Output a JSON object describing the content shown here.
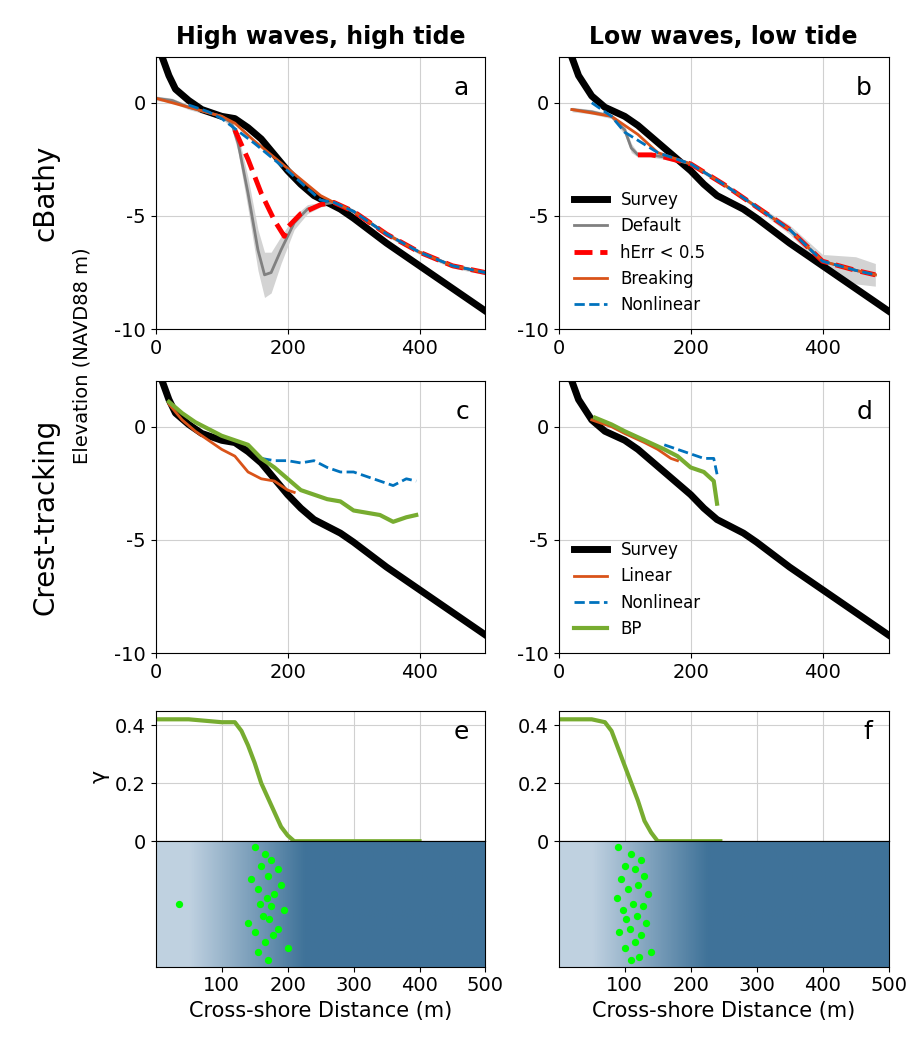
{
  "figure": {
    "ylabel": "Elevation (NAVD88 m)",
    "row_labels": [
      "cBathy",
      "Crest-tracking"
    ]
  },
  "chart_data": [
    {
      "type": "line",
      "label": "a",
      "title": "High waves, high tide",
      "xlim": [
        0,
        500
      ],
      "xticks": [
        0,
        200,
        400
      ],
      "ylim": [
        -10,
        2
      ],
      "yticks": [
        -10,
        -5,
        0
      ],
      "grid": true,
      "series": [
        {
          "name": "Survey",
          "color": "#000000",
          "line_style": "solid",
          "x": [
            10,
            20,
            30,
            50,
            70,
            100,
            120,
            140,
            160,
            180,
            200,
            220,
            240,
            260,
            280,
            300,
            350,
            400,
            450,
            500
          ],
          "values": [
            2.0,
            1.2,
            0.6,
            0.1,
            -0.3,
            -0.6,
            -0.7,
            -1.1,
            -1.6,
            -2.3,
            -3.0,
            -3.6,
            -4.1,
            -4.4,
            -4.7,
            -5.1,
            -6.2,
            -7.2,
            -8.2,
            -9.2
          ]
        },
        {
          "name": "Default",
          "color": "#808080",
          "line_style": "solid",
          "x": [
            0,
            25,
            50,
            75,
            100,
            115,
            125,
            140,
            155,
            165,
            175,
            190,
            210,
            230,
            250,
            270,
            300,
            350,
            400,
            450,
            500
          ],
          "values": [
            0.2,
            0.1,
            -0.2,
            -0.4,
            -0.6,
            -0.9,
            -1.8,
            -4.0,
            -6.5,
            -7.6,
            -7.5,
            -6.5,
            -5.3,
            -4.7,
            -4.5,
            -4.4,
            -4.8,
            -5.8,
            -6.6,
            -7.2,
            -7.5
          ],
          "error": [
            0.1,
            0.1,
            0.1,
            0.1,
            0.1,
            0.2,
            0.4,
            0.7,
            0.9,
            1.0,
            0.9,
            0.6,
            0.3,
            0.2,
            0.1,
            0.1,
            0.1,
            0.1,
            0.1,
            0.1,
            0.1
          ]
        },
        {
          "name": "hErr < 0.5",
          "color": "#ff0000",
          "line_style": "dashed",
          "x": [
            120,
            140,
            160,
            180,
            195,
            200,
            220,
            250,
            270,
            300,
            350,
            400,
            450,
            500
          ],
          "values": [
            -1.2,
            -2.5,
            -4.0,
            -5.2,
            -5.9,
            -5.5,
            -4.9,
            -4.5,
            -4.4,
            -4.8,
            -5.8,
            -6.6,
            -7.2,
            -7.5
          ]
        },
        {
          "name": "Breaking",
          "color": "#d95319",
          "line_style": "solid",
          "x": [
            0,
            50,
            100,
            120,
            150,
            200,
            250,
            270,
            300,
            350,
            400,
            450,
            500
          ],
          "values": [
            0.2,
            -0.2,
            -0.6,
            -0.9,
            -1.7,
            -2.9,
            -4.1,
            -4.4,
            -4.8,
            -5.8,
            -6.6,
            -7.2,
            -7.5
          ]
        },
        {
          "name": "Nonlinear",
          "color": "#0072bd",
          "line_style": "dashed",
          "x": [
            50,
            80,
            100,
            150,
            200,
            250,
            270,
            300,
            350,
            400,
            450,
            500
          ],
          "values": [
            -0.1,
            -0.4,
            -0.7,
            -1.8,
            -3.0,
            -4.3,
            -4.4,
            -4.8,
            -5.8,
            -6.6,
            -7.2,
            -7.5
          ]
        }
      ]
    },
    {
      "type": "line",
      "label": "b",
      "title": "Low waves, low tide",
      "xlim": [
        0,
        500
      ],
      "xticks": [
        0,
        200,
        400
      ],
      "ylim": [
        -10,
        2
      ],
      "yticks": [
        -10,
        -5,
        0
      ],
      "grid": true,
      "legend": "lower left",
      "series": [
        {
          "name": "Survey",
          "color": "#000000",
          "line_style": "solid",
          "x": [
            20,
            30,
            50,
            70,
            100,
            120,
            140,
            160,
            180,
            200,
            220,
            240,
            260,
            280,
            300,
            350,
            400,
            450,
            500
          ],
          "values": [
            2.0,
            1.2,
            0.3,
            -0.2,
            -0.6,
            -1.0,
            -1.5,
            -2.0,
            -2.5,
            -3.0,
            -3.6,
            -4.1,
            -4.4,
            -4.7,
            -5.1,
            -6.2,
            -7.2,
            -8.2,
            -9.2
          ]
        },
        {
          "name": "Default",
          "color": "#808080",
          "line_style": "solid",
          "x": [
            20,
            50,
            80,
            100,
            110,
            120,
            140,
            160,
            200,
            250,
            300,
            350,
            400,
            450,
            480
          ],
          "values": [
            -0.3,
            -0.4,
            -0.6,
            -1.2,
            -2.0,
            -2.3,
            -2.3,
            -2.4,
            -2.7,
            -3.6,
            -4.6,
            -5.6,
            -7.0,
            -7.4,
            -7.6
          ],
          "error": [
            0.1,
            0.1,
            0.1,
            0.2,
            0.2,
            0.1,
            0.1,
            0.1,
            0.1,
            0.1,
            0.1,
            0.2,
            0.3,
            0.6,
            0.5
          ]
        },
        {
          "name": "hErr < 0.5",
          "color": "#ff0000",
          "line_style": "dashed",
          "x": [
            120,
            140,
            160,
            200,
            250,
            300,
            350,
            400,
            450,
            480
          ],
          "values": [
            -2.3,
            -2.3,
            -2.4,
            -2.7,
            -3.6,
            -4.6,
            -5.6,
            -7.0,
            -7.4,
            -7.6
          ]
        },
        {
          "name": "Breaking",
          "color": "#d95319",
          "line_style": "solid",
          "x": [
            20,
            80,
            120,
            150,
            200,
            250,
            300,
            350,
            400,
            450,
            480
          ],
          "values": [
            -0.3,
            -0.6,
            -1.4,
            -2.2,
            -2.7,
            -3.6,
            -4.6,
            -5.6,
            -7.0,
            -7.4,
            -7.6
          ]
        },
        {
          "name": "Nonlinear",
          "color": "#0072bd",
          "line_style": "dashed",
          "x": [
            50,
            80,
            100,
            150,
            200,
            250,
            300,
            350,
            400,
            450,
            480
          ],
          "values": [
            0.0,
            -0.6,
            -1.3,
            -2.2,
            -2.7,
            -3.6,
            -4.6,
            -5.6,
            -7.0,
            -7.4,
            -7.6
          ]
        }
      ]
    },
    {
      "type": "line",
      "label": "c",
      "xlim": [
        0,
        500
      ],
      "xticks": [
        0,
        200,
        400
      ],
      "ylim": [
        -10,
        2
      ],
      "yticks": [
        -10,
        -5,
        0
      ],
      "grid": true,
      "series": [
        {
          "name": "Survey",
          "color": "#000000",
          "line_style": "solid",
          "x": [
            10,
            20,
            30,
            50,
            70,
            100,
            120,
            140,
            160,
            180,
            200,
            220,
            240,
            260,
            280,
            300,
            350,
            400,
            450,
            500
          ],
          "values": [
            2.0,
            1.2,
            0.6,
            0.1,
            -0.3,
            -0.6,
            -0.7,
            -1.1,
            -1.6,
            -2.3,
            -3.0,
            -3.6,
            -4.1,
            -4.4,
            -4.7,
            -5.1,
            -6.2,
            -7.2,
            -8.2,
            -9.2
          ]
        },
        {
          "name": "Linear",
          "color": "#d95319",
          "line_style": "solid",
          "x": [
            20,
            40,
            60,
            80,
            100,
            120,
            140,
            160,
            180,
            200,
            210
          ],
          "values": [
            1.0,
            0.3,
            -0.2,
            -0.6,
            -1.0,
            -1.3,
            -2.0,
            -2.3,
            -2.4,
            -2.8,
            -2.9
          ]
        },
        {
          "name": "Nonlinear",
          "color": "#0072bd",
          "line_style": "dashed",
          "x": [
            160,
            180,
            200,
            220,
            240,
            260,
            280,
            300,
            320,
            340,
            360,
            380,
            395
          ],
          "values": [
            -1.4,
            -1.5,
            -1.5,
            -1.6,
            -1.5,
            -1.8,
            -2.0,
            -2.0,
            -2.2,
            -2.4,
            -2.6,
            -2.3,
            -2.4
          ]
        },
        {
          "name": "BP",
          "color": "#77ac30",
          "line_style": "solid",
          "x": [
            20,
            40,
            60,
            80,
            100,
            120,
            140,
            160,
            180,
            200,
            220,
            240,
            260,
            280,
            300,
            320,
            340,
            360,
            380,
            395
          ],
          "values": [
            1.1,
            0.6,
            0.2,
            -0.1,
            -0.4,
            -0.6,
            -0.8,
            -1.4,
            -1.8,
            -2.3,
            -2.8,
            -3.0,
            -3.2,
            -3.3,
            -3.7,
            -3.8,
            -3.9,
            -4.2,
            -4.0,
            -3.9
          ]
        }
      ]
    },
    {
      "type": "line",
      "label": "d",
      "xlim": [
        0,
        500
      ],
      "xticks": [
        0,
        200,
        400
      ],
      "ylim": [
        -10,
        2
      ],
      "yticks": [
        -10,
        -5,
        0
      ],
      "grid": true,
      "legend": "lower left",
      "series": [
        {
          "name": "Survey",
          "color": "#000000",
          "line_style": "solid",
          "x": [
            20,
            30,
            50,
            70,
            100,
            120,
            140,
            160,
            180,
            200,
            220,
            240,
            260,
            280,
            300,
            350,
            400,
            450,
            500
          ],
          "values": [
            2.0,
            1.2,
            0.3,
            -0.2,
            -0.6,
            -1.0,
            -1.5,
            -2.0,
            -2.5,
            -3.0,
            -3.6,
            -4.1,
            -4.4,
            -4.7,
            -5.1,
            -6.2,
            -7.2,
            -8.2,
            -9.2
          ]
        },
        {
          "name": "Linear",
          "color": "#d95319",
          "line_style": "solid",
          "x": [
            50,
            80,
            100,
            130,
            150,
            170,
            180
          ],
          "values": [
            0.3,
            0.0,
            -0.3,
            -0.7,
            -1.0,
            -1.4,
            -1.5
          ]
        },
        {
          "name": "Nonlinear",
          "color": "#0072bd",
          "line_style": "dashed",
          "x": [
            160,
            180,
            200,
            220,
            235,
            240
          ],
          "values": [
            -0.8,
            -1.0,
            -1.2,
            -1.4,
            -1.4,
            -2.1
          ]
        },
        {
          "name": "BP",
          "color": "#77ac30",
          "line_style": "solid",
          "x": [
            55,
            80,
            100,
            130,
            160,
            180,
            200,
            220,
            235,
            240
          ],
          "values": [
            0.4,
            0.1,
            -0.2,
            -0.6,
            -1.0,
            -1.3,
            -1.8,
            -2.0,
            -2.4,
            -3.4
          ]
        }
      ]
    },
    {
      "type": "line",
      "label": "e",
      "ylabel": "γ",
      "tick_labels": "y",
      "xlim": [
        0,
        500
      ],
      "xticks": [
        100,
        200,
        300,
        400
      ],
      "ylim": [
        0,
        0.45
      ],
      "yticks": [
        0,
        0.2,
        0.4
      ],
      "grid": true,
      "series": [
        {
          "name": "γ",
          "color": "#77ac30",
          "line_style": "solid",
          "x": [
            0,
            50,
            100,
            120,
            130,
            140,
            150,
            160,
            170,
            180,
            190,
            200,
            210,
            300,
            400
          ],
          "values": [
            0.42,
            0.42,
            0.41,
            0.41,
            0.38,
            0.33,
            0.27,
            0.2,
            0.15,
            0.1,
            0.05,
            0.02,
            0.0,
            0.0,
            0.0
          ]
        }
      ]
    },
    {
      "type": "line",
      "label": "f",
      "tick_labels": "y",
      "xlim": [
        0,
        500
      ],
      "xticks": [
        100,
        200,
        300,
        400
      ],
      "ylim": [
        0,
        0.45
      ],
      "yticks": [
        0,
        0.2,
        0.4
      ],
      "grid": true,
      "series": [
        {
          "name": "γ",
          "color": "#77ac30",
          "line_style": "solid",
          "x": [
            0,
            50,
            70,
            80,
            90,
            100,
            110,
            120,
            130,
            140,
            150,
            200,
            245
          ],
          "values": [
            0.42,
            0.42,
            0.41,
            0.38,
            0.32,
            0.26,
            0.2,
            0.14,
            0.07,
            0.03,
            0.0,
            0.0,
            0.0
          ]
        }
      ]
    },
    {
      "type": "scatter",
      "xlabel": "Cross-shore Distance (m)",
      "tick_labels": "x",
      "xlim": [
        0,
        500
      ],
      "xticks": [
        100,
        200,
        300,
        400,
        500
      ],
      "ylim": [
        0,
        1
      ],
      "color": "#00ff00",
      "x": [
        150,
        165,
        175,
        160,
        185,
        170,
        145,
        190,
        155,
        180,
        168,
        158,
        175,
        195,
        162,
        172,
        140,
        185,
        150,
        178,
        165,
        200,
        155,
        35,
        170
      ],
      "y": [
        0.95,
        0.9,
        0.85,
        0.8,
        0.78,
        0.72,
        0.7,
        0.65,
        0.62,
        0.58,
        0.55,
        0.5,
        0.48,
        0.45,
        0.4,
        0.38,
        0.35,
        0.3,
        0.28,
        0.25,
        0.2,
        0.15,
        0.12,
        0.5,
        0.05
      ]
    },
    {
      "type": "scatter",
      "xlabel": "Cross-shore Distance (m)",
      "tick_labels": "x",
      "xlim": [
        0,
        500
      ],
      "xticks": [
        100,
        200,
        300,
        400,
        500
      ],
      "ylim": [
        0,
        1
      ],
      "color": "#00ff00",
      "x": [
        90,
        110,
        125,
        100,
        115,
        130,
        95,
        120,
        105,
        135,
        88,
        112,
        128,
        98,
        118,
        102,
        132,
        108,
        92,
        125,
        115,
        100,
        140,
        122,
        110
      ],
      "y": [
        0.95,
        0.9,
        0.85,
        0.8,
        0.78,
        0.72,
        0.7,
        0.65,
        0.62,
        0.58,
        0.55,
        0.5,
        0.48,
        0.45,
        0.4,
        0.38,
        0.35,
        0.3,
        0.28,
        0.25,
        0.2,
        0.15,
        0.12,
        0.08,
        0.05
      ]
    }
  ]
}
